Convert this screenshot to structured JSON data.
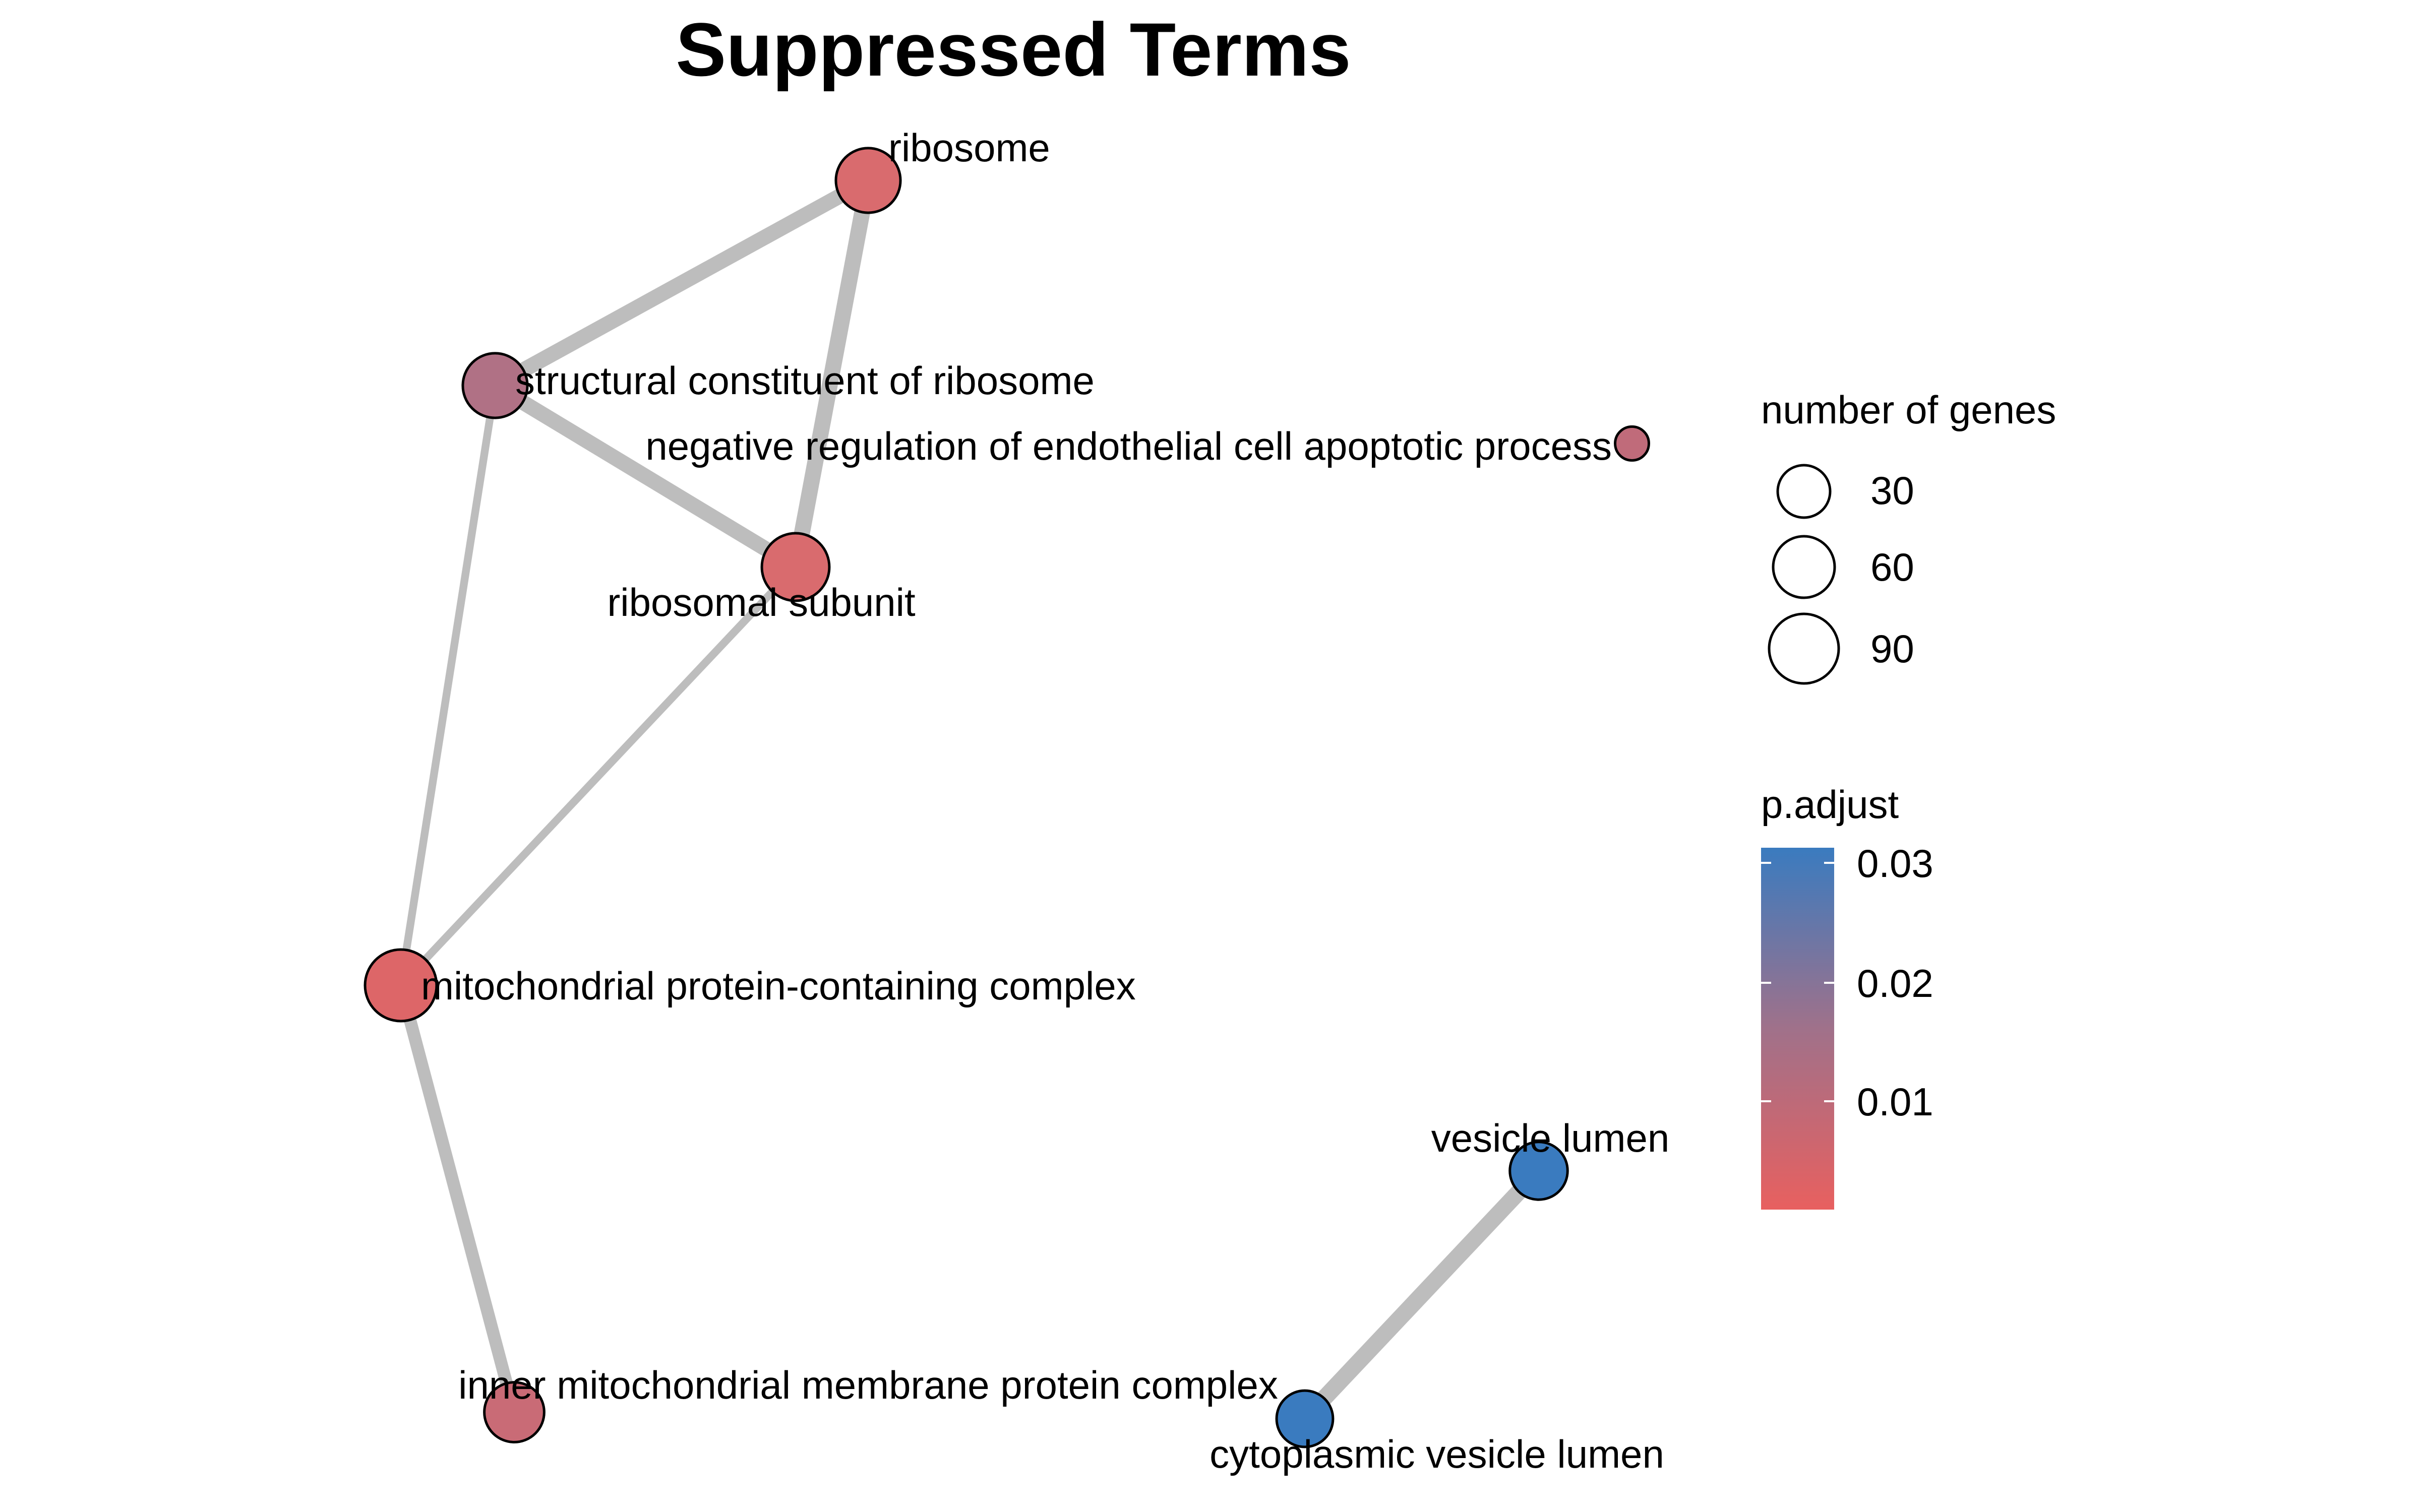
{
  "title": "Suppressed Terms",
  "nodes": [
    {
      "id": "ribosome",
      "label": "ribosome",
      "size": 62,
      "color": "#d96b6e"
    },
    {
      "id": "structural",
      "label": "structural constituent of ribosome",
      "size": 62,
      "color": "#b07185"
    },
    {
      "id": "negreg",
      "label": "negative regulation of endothelial cell apoptotic process",
      "size": 7,
      "color": "#c06b7a"
    },
    {
      "id": "subunit",
      "label": "ribosomal subunit",
      "size": 70,
      "color": "#d96b6e"
    },
    {
      "id": "mito",
      "label": "mitochondrial protein-containing complex",
      "size": 82,
      "color": "#dd6668"
    },
    {
      "id": "vesicle",
      "label": "vesicle lumen",
      "size": 45,
      "color": "#3a7bbf"
    },
    {
      "id": "inner",
      "label": "inner mitochondrial membrane protein complex",
      "size": 50,
      "color": "#c96b76"
    },
    {
      "id": "cytovesicle",
      "label": "cytoplasmic vesicle lumen",
      "size": 42,
      "color": "#3a7bbf"
    }
  ],
  "edges": [
    {
      "source": "ribosome",
      "target": "structural",
      "weight": 0.9
    },
    {
      "source": "ribosome",
      "target": "subunit",
      "weight": 0.95
    },
    {
      "source": "structural",
      "target": "subunit",
      "weight": 0.9
    },
    {
      "source": "structural",
      "target": "mito",
      "weight": 0.35
    },
    {
      "source": "subunit",
      "target": "mito",
      "weight": 0.35
    },
    {
      "source": "mito",
      "target": "inner",
      "weight": 0.7
    },
    {
      "source": "vesicle",
      "target": "cytovesicle",
      "weight": 1.0
    }
  ],
  "legend_size": {
    "title": "number of genes",
    "items": [
      {
        "label": "30",
        "value": 30
      },
      {
        "label": "60",
        "value": 60
      },
      {
        "label": "90",
        "value": 90
      }
    ]
  },
  "legend_color": {
    "title": "p.adjust",
    "color_low": "#e8605f",
    "color_mid": "#a0718a",
    "color_high": "#3a7bbf",
    "ticks": [
      {
        "label": "0.03",
        "value": 0.03
      },
      {
        "label": "0.02",
        "value": 0.02
      },
      {
        "label": "0.01",
        "value": 0.01
      }
    ]
  },
  "colors": {
    "edge": "#bdbdbd",
    "node_stroke": "#000000"
  }
}
